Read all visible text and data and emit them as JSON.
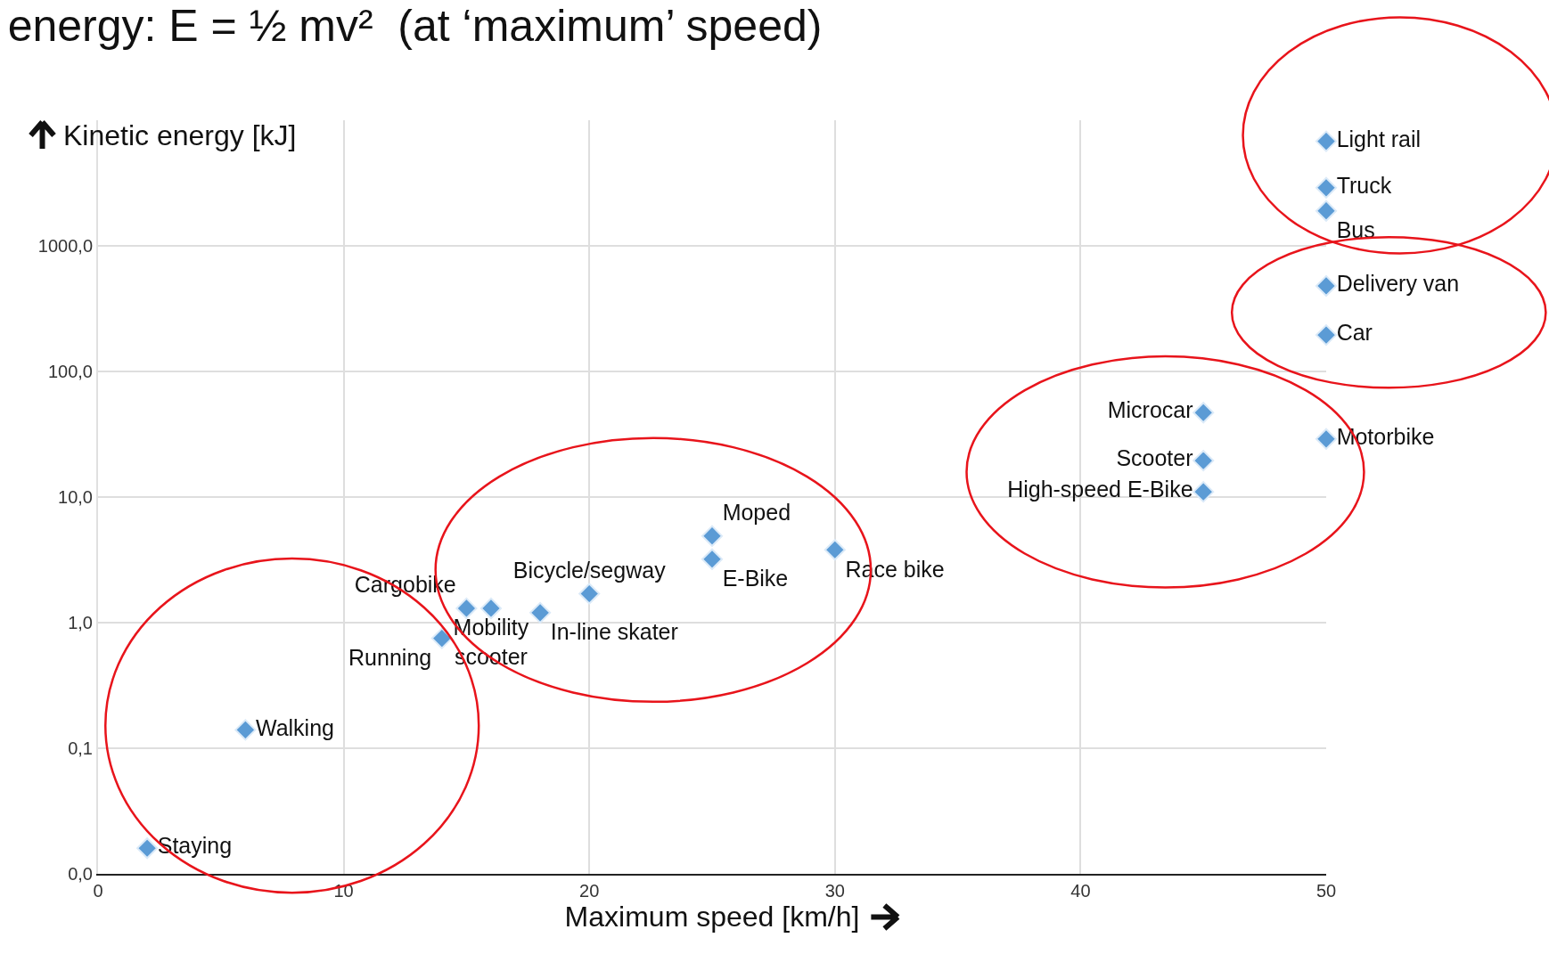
{
  "chart_data": {
    "type": "scatter",
    "title": "energy: E = ½ mv²  (at ‘maximum’ speed)",
    "xlabel": "Maximum speed [km/h]",
    "ylabel": "Kinetic energy [kJ]",
    "log": "y",
    "grid": true,
    "marker": "diamond",
    "xlim": [
      0,
      50
    ],
    "xticks": [
      0,
      10,
      20,
      30,
      40,
      50
    ],
    "ylim": [
      0.01,
      10000
    ],
    "yticks": [
      {
        "value": 0.01,
        "label": "0,0"
      },
      {
        "value": 0.1,
        "label": "0,1"
      },
      {
        "value": 1,
        "label": "1,0"
      },
      {
        "value": 10,
        "label": "10,0"
      },
      {
        "value": 100,
        "label": "100,0"
      },
      {
        "value": 1000,
        "label": "1000,0"
      }
    ],
    "series": [
      {
        "name": "Staying",
        "color": "#5b9bd5",
        "x": [
          2
        ],
        "values": [
          0.016
        ]
      },
      {
        "name": "Walking",
        "color": "#5b9bd5",
        "x": [
          6
        ],
        "values": [
          0.14
        ]
      },
      {
        "name": "Running",
        "color": "#5b9bd5",
        "x": [
          14
        ],
        "values": [
          0.75
        ]
      },
      {
        "name": "Cargobike",
        "color": "#5b9bd5",
        "x": [
          15
        ],
        "values": [
          1.3
        ]
      },
      {
        "name": "Mobility scooter",
        "color": "#5b9bd5",
        "x": [
          16
        ],
        "values": [
          1.3
        ]
      },
      {
        "name": "In-line skater",
        "color": "#5b9bd5",
        "x": [
          18
        ],
        "values": [
          1.2
        ]
      },
      {
        "name": "Bicycle/segway",
        "color": "#5b9bd5",
        "x": [
          20
        ],
        "values": [
          1.7
        ]
      },
      {
        "name": "E-Bike",
        "color": "#5b9bd5",
        "x": [
          25
        ],
        "values": [
          3.2
        ]
      },
      {
        "name": "Moped",
        "color": "#5b9bd5",
        "x": [
          25
        ],
        "values": [
          4.9
        ]
      },
      {
        "name": "Race bike",
        "color": "#5b9bd5",
        "x": [
          30
        ],
        "values": [
          3.8
        ]
      },
      {
        "name": "High-speed E-Bike",
        "color": "#5b9bd5",
        "x": [
          45
        ],
        "values": [
          11
        ]
      },
      {
        "name": "Scooter",
        "color": "#5b9bd5",
        "x": [
          45
        ],
        "values": [
          19.5
        ]
      },
      {
        "name": "Microcar",
        "color": "#5b9bd5",
        "x": [
          45
        ],
        "values": [
          47
        ]
      },
      {
        "name": "Motorbike",
        "color": "#5b9bd5",
        "x": [
          50
        ],
        "values": [
          29
        ]
      },
      {
        "name": "Car",
        "color": "#5b9bd5",
        "x": [
          50
        ],
        "values": [
          195
        ]
      },
      {
        "name": "Delivery van",
        "color": "#5b9bd5",
        "x": [
          50
        ],
        "values": [
          480
        ]
      },
      {
        "name": "Bus",
        "color": "#5b9bd5",
        "x": [
          50
        ],
        "values": [
          1900
        ]
      },
      {
        "name": "Truck",
        "color": "#5b9bd5",
        "x": [
          50
        ],
        "values": [
          2900
        ]
      },
      {
        "name": "Light rail",
        "color": "#5b9bd5",
        "x": [
          50
        ],
        "values": [
          6800
        ]
      }
    ]
  }
}
